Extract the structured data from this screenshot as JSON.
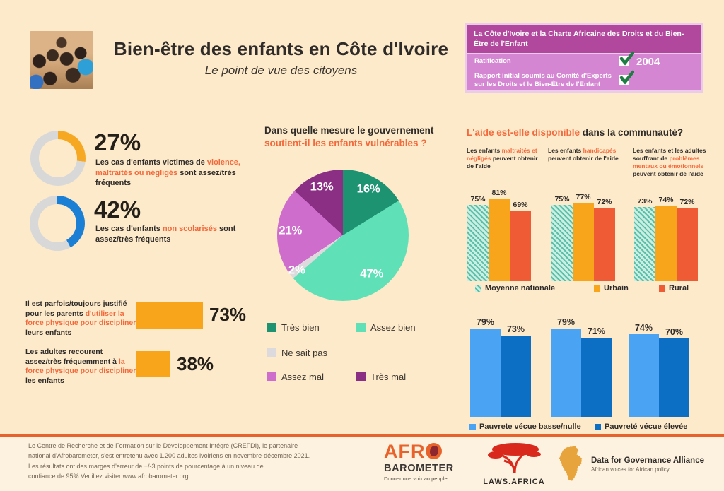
{
  "header": {
    "title": "Bien-être des enfants en Côte d'Ivoire",
    "subtitle": "Le point de vue des citoyens"
  },
  "charte": {
    "title": "La Côte d'Ivoire et la Charte Africaine des Droits et du Bien-Être de l'Enfant",
    "rows": [
      {
        "label": "Ratification",
        "year": "2004",
        "checked": true
      },
      {
        "label": "Rapport initial soumis au Comité d'Experts sur les Droits et le Bien-Être de l'Enfant",
        "year": "",
        "checked": true
      }
    ],
    "colors": {
      "header_bg": "#b1489e",
      "body_bg": "#d586d3",
      "border": "#eccaea",
      "check_green": "#1e7d42"
    }
  },
  "donut_section": {
    "items": [
      {
        "segments": [
          {
            "t": "Les cas d'enfants victimes de "
          },
          {
            "t": "violence, maltraités ou négligés",
            "hl": true
          },
          {
            "t": " sont assez/très fréquents"
          }
        ]
      },
      {
        "segments": [
          {
            "t": "Les cas d'enfants "
          },
          {
            "t": "non scolarisés",
            "hl": true
          },
          {
            "t": " sont assez/très fréquents"
          }
        ]
      }
    ]
  },
  "pie_section": {
    "title_line1": "Dans quelle mesure le gouvernement",
    "title_line2": "soutient-il les enfants vulnérables ?"
  },
  "force": {
    "items": [
      {
        "segments": [
          {
            "t": "Il est parfois/toujours justifié pour les parents "
          },
          {
            "t": "d'utiliser la force physique pour discipliner",
            "hl": true
          },
          {
            "t": " leurs enfants"
          }
        ]
      },
      {
        "segments": [
          {
            "t": "Les adultes recourent assez/très fréquemment à "
          },
          {
            "t": "la force physique pour discipliner",
            "hl": true
          },
          {
            "t": " les enfants"
          }
        ]
      }
    ]
  },
  "aide": {
    "title_hl": "L'aide est-elle disponible",
    "title_rest": " dans la communauté?",
    "columns": [
      {
        "segments": [
          {
            "t": "Les enfants "
          },
          {
            "t": "maltraités et négligés",
            "hl": true
          },
          {
            "t": " peuvent obtenir de l'aide"
          }
        ]
      },
      {
        "segments": [
          {
            "t": "Les enfants "
          },
          {
            "t": "handicapés",
            "hl": true
          },
          {
            "t": " peuvent obtenir de l'aide"
          }
        ]
      },
      {
        "segments": [
          {
            "t": "Les enfants et les adultes souffrant de "
          },
          {
            "t": "problèmes mentaux ou émotionnels",
            "hl": true
          },
          {
            "t": " peuvent obtenir de l'aide"
          }
        ]
      }
    ]
  },
  "chart_data": [
    {
      "id": "donut-violence",
      "type": "donut",
      "value": 27,
      "label": "27%",
      "color": "#f7a823",
      "track": "#d8d8d8"
    },
    {
      "id": "donut-non-scolarises",
      "type": "donut",
      "value": 42,
      "label": "42%",
      "color": "#1c7fd6",
      "track": "#d8d8d8"
    },
    {
      "id": "pie-gouvernement",
      "type": "pie",
      "title": "Dans quelle mesure le gouvernement soutient-il les enfants vulnérables ?",
      "slices": [
        {
          "label": "Très bien",
          "value": 16,
          "color": "#1e9372"
        },
        {
          "label": "Assez bien",
          "value": 47,
          "color": "#5fe0b7"
        },
        {
          "label": "Ne sait pas",
          "value": 2,
          "color": "#dcdadc"
        },
        {
          "label": "Assez mal",
          "value": 21,
          "color": "#cf6dcd"
        },
        {
          "label": "Très mal",
          "value": 13,
          "color": "#8b2f85"
        }
      ],
      "legend_position": "below"
    },
    {
      "id": "bars-force-physique",
      "type": "bar",
      "orientation": "horizontal",
      "color": "#f9a51b",
      "items": [
        {
          "label": "73%",
          "value": 73
        },
        {
          "label": "38%",
          "value": 38
        }
      ]
    },
    {
      "id": "bars-aide-disponible",
      "type": "bar",
      "categories": [
        "Enfants maltraités et négligés",
        "Enfants handicapés",
        "Problèmes mentaux ou émotionnels"
      ],
      "series": [
        {
          "name": "Moyenne nationale",
          "style": "hatch",
          "color": "#58c0a9",
          "values": [
            75,
            75,
            73
          ]
        },
        {
          "name": "Urbain",
          "color": "#f9a51b",
          "values": [
            81,
            77,
            74
          ]
        },
        {
          "name": "Rural",
          "color": "#ee5b35",
          "values": [
            69,
            72,
            72
          ]
        }
      ],
      "ylim": [
        0,
        100
      ],
      "grid": false
    },
    {
      "id": "bars-pauvrete",
      "type": "bar",
      "categories": [
        "Enfants maltraités et négligés",
        "Enfants handicapés",
        "Problèmes mentaux ou émotionnels"
      ],
      "series": [
        {
          "name": "Pauvrete vécue basse/nulle",
          "color": "#4aa3f3",
          "values": [
            79,
            79,
            74
          ]
        },
        {
          "name": "Pauvreté vécue élevée",
          "color": "#0d6fc4",
          "values": [
            73,
            71,
            70
          ]
        }
      ],
      "ylim": [
        0,
        100
      ],
      "grid": false
    }
  ],
  "footer": {
    "lines": [
      "Le Centre de Recherche et de Formation sur le Développement Intégré (CREFDI), le partenaire",
      "national d'Afrobarometer, s'est entretenu avec 1.200 adultes ivoiriens en novembre-décembre 2021.",
      "Les résultats ont des marges d'erreur de +/-3 points de pourcentage à un niveau de",
      "confiance de 95%.Veuillez visiter www.afrobarometer.org"
    ],
    "logos": {
      "afrobarometer": {
        "line1": "AFR",
        "line2": "BAROMETER",
        "tagline": "Donner une voix au peuple"
      },
      "laws_africa": {
        "label": "LAWS.AFRICA"
      },
      "dga": {
        "title": "Data for Governance Alliance",
        "subtitle": "African voices for African policy"
      }
    }
  }
}
